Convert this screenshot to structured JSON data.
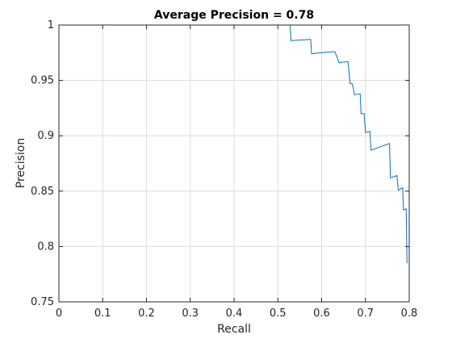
{
  "chart_data": {
    "type": "line",
    "title": "Average Precision = 0.78",
    "xlabel": "Recall",
    "ylabel": "Precision",
    "xlim": [
      0,
      0.8
    ],
    "ylim": [
      0.75,
      1
    ],
    "xticks": [
      0,
      0.1,
      0.2,
      0.3,
      0.4,
      0.5,
      0.6,
      0.7,
      0.8
    ],
    "xtick_labels": [
      "0",
      "0.1",
      "0.2",
      "0.3",
      "0.4",
      "0.5",
      "0.6",
      "0.7",
      "0.8"
    ],
    "yticks": [
      0.75,
      0.8,
      0.85,
      0.9,
      0.95,
      1
    ],
    "ytick_labels": [
      "0.75",
      "0.8",
      "0.85",
      "0.9",
      "0.95",
      "1"
    ],
    "grid": true,
    "line_color": "#0072BD",
    "points": [
      [
        0,
        1
      ],
      [
        0.528,
        1
      ],
      [
        0.53,
        0.986
      ],
      [
        0.575,
        0.987
      ],
      [
        0.577,
        0.974
      ],
      [
        0.6,
        0.975
      ],
      [
        0.63,
        0.976
      ],
      [
        0.64,
        0.966
      ],
      [
        0.66,
        0.967
      ],
      [
        0.665,
        0.947
      ],
      [
        0.67,
        0.947
      ],
      [
        0.675,
        0.937
      ],
      [
        0.688,
        0.938
      ],
      [
        0.69,
        0.92
      ],
      [
        0.697,
        0.92
      ],
      [
        0.7,
        0.903
      ],
      [
        0.71,
        0.904
      ],
      [
        0.713,
        0.887
      ],
      [
        0.755,
        0.893
      ],
      [
        0.757,
        0.862
      ],
      [
        0.772,
        0.864
      ],
      [
        0.775,
        0.851
      ],
      [
        0.785,
        0.853
      ],
      [
        0.787,
        0.833
      ],
      [
        0.793,
        0.834
      ],
      [
        0.795,
        0.785
      ]
    ]
  }
}
